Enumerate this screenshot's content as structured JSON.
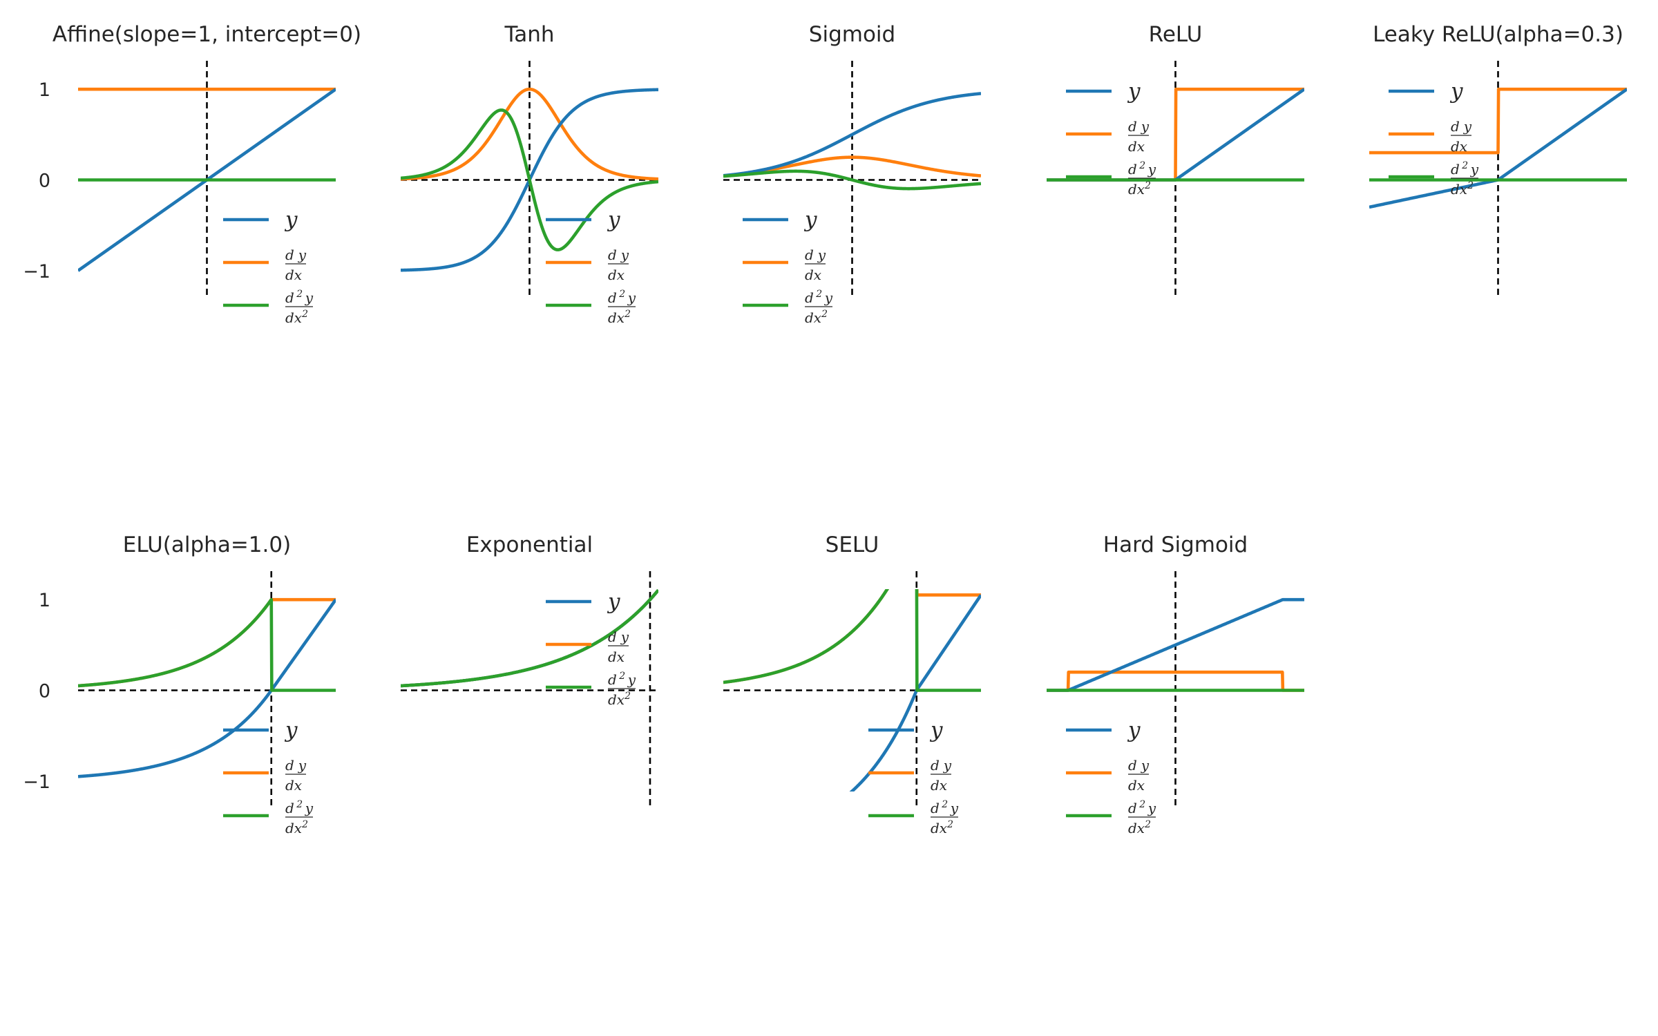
{
  "colors": {
    "y": "#1f77b4",
    "dy": "#ff7f0e",
    "d2y": "#2ca02c",
    "guide": "#000000"
  },
  "legend_entries": [
    {
      "name": "y",
      "label": "y"
    },
    {
      "name": "dy",
      "label": "dy/dx"
    },
    {
      "name": "d2y",
      "label": "d²y/dx²"
    }
  ],
  "chart_data": [
    {
      "type": "line",
      "id": "affine",
      "title": "Affine(slope=1, intercept=0)",
      "func": "affine",
      "xlim": [
        -1,
        1
      ],
      "ylim": [
        -1.1,
        1.1
      ],
      "yticks": [
        1,
        0,
        -1
      ],
      "ytick_labels": [
        "1",
        "0",
        "−1"
      ],
      "hline": false,
      "vline": true,
      "legend": "lower-right",
      "series": [
        {
          "name": "y",
          "formula": "x"
        },
        {
          "name": "dy",
          "formula": "1"
        },
        {
          "name": "d2y",
          "formula": "0"
        }
      ]
    },
    {
      "type": "line",
      "id": "tanh",
      "title": "Tanh",
      "func": "tanh",
      "xlim": [
        -3,
        3
      ],
      "ylim": [
        -1.1,
        1.1
      ],
      "hline": true,
      "vline": true,
      "legend": "lower-right",
      "series": [
        {
          "name": "y",
          "formula": "tanh(x)"
        },
        {
          "name": "dy",
          "formula": "1 - tanh(x)^2"
        },
        {
          "name": "d2y",
          "formula": "-2 tanh(x)(1 - tanh(x)^2)"
        }
      ]
    },
    {
      "type": "line",
      "id": "sigmoid",
      "title": "Sigmoid",
      "func": "sigmoid",
      "xlim": [
        -3,
        3
      ],
      "ylim": [
        -1.1,
        1.1
      ],
      "hline": true,
      "vline": true,
      "legend": "lower-left",
      "series": [
        {
          "name": "y",
          "formula": "1/(1+e^-x)"
        },
        {
          "name": "dy",
          "formula": "s(1-s)"
        },
        {
          "name": "d2y",
          "formula": "s(1-s)(1-2s)"
        }
      ]
    },
    {
      "type": "line",
      "id": "relu",
      "title": "ReLU",
      "func": "relu",
      "xlim": [
        -1,
        1
      ],
      "ylim": [
        -1.1,
        1.1
      ],
      "hline": false,
      "vline": true,
      "legend": "upper-left",
      "series": [
        {
          "name": "y",
          "formula": "max(0, x)"
        },
        {
          "name": "dy",
          "formula": "step(x)"
        },
        {
          "name": "d2y",
          "formula": "0"
        }
      ]
    },
    {
      "type": "line",
      "id": "leaky",
      "title": "Leaky ReLU(alpha=0.3)",
      "func": "leaky",
      "alpha": 0.3,
      "xlim": [
        -1,
        1
      ],
      "ylim": [
        -1.1,
        1.1
      ],
      "hline": false,
      "vline": true,
      "legend": "upper-left",
      "series": [
        {
          "name": "y",
          "formula": "x if x>0 else 0.3x"
        },
        {
          "name": "dy",
          "formula": "1 if x>0 else 0.3"
        },
        {
          "name": "d2y",
          "formula": "0"
        }
      ]
    },
    {
      "type": "line",
      "id": "elu",
      "title": "ELU(alpha=1.0)",
      "func": "elu",
      "alpha": 1.0,
      "xlim": [
        -3,
        1
      ],
      "ylim": [
        -1.1,
        1.1
      ],
      "yticks": [
        1,
        0,
        -1
      ],
      "ytick_labels": [
        "1",
        "0",
        "−1"
      ],
      "hline": true,
      "vline": true,
      "legend": "lower-right",
      "series": [
        {
          "name": "y",
          "formula": "x if x>0 else e^x - 1"
        },
        {
          "name": "dy",
          "formula": "1 if x>0 else e^x"
        },
        {
          "name": "d2y",
          "formula": "0 if x>0 else e^x"
        }
      ]
    },
    {
      "type": "line",
      "id": "exponential",
      "title": "Exponential",
      "func": "exp",
      "xlim": [
        -3,
        0.1
      ],
      "ylim": [
        -1.1,
        1.1
      ],
      "hline": true,
      "vline": true,
      "legend": "upper-right",
      "series": [
        {
          "name": "y",
          "formula": "e^x"
        },
        {
          "name": "dy",
          "formula": "e^x"
        },
        {
          "name": "d2y",
          "formula": "e^x"
        }
      ]
    },
    {
      "type": "line",
      "id": "selu",
      "title": "SELU",
      "func": "selu",
      "alpha": 1.6733,
      "scale": 1.0507,
      "xlim": [
        -3,
        1
      ],
      "ylim": [
        -1.1,
        1.1
      ],
      "hline": true,
      "vline": true,
      "legend": "lower-right",
      "series": [
        {
          "name": "y",
          "formula": "scale*(x if x>0 else alpha(e^x-1))"
        },
        {
          "name": "dy",
          "formula": "scale*(1 if x>0 else alpha e^x)"
        },
        {
          "name": "d2y",
          "formula": "0 if x>0 else scale*alpha e^x"
        }
      ]
    },
    {
      "type": "line",
      "id": "hardsig",
      "title": "Hard Sigmoid",
      "func": "hardsig",
      "xlim": [
        -3,
        3
      ],
      "ylim": [
        -1.1,
        1.1
      ],
      "hline": false,
      "vline": true,
      "legend": "lower-left",
      "series": [
        {
          "name": "y",
          "formula": "clip(0.2x + 0.5, 0, 1)"
        },
        {
          "name": "dy",
          "formula": "0.2 on [-2.5, 2.5]"
        },
        {
          "name": "d2y",
          "formula": "0"
        }
      ]
    }
  ]
}
